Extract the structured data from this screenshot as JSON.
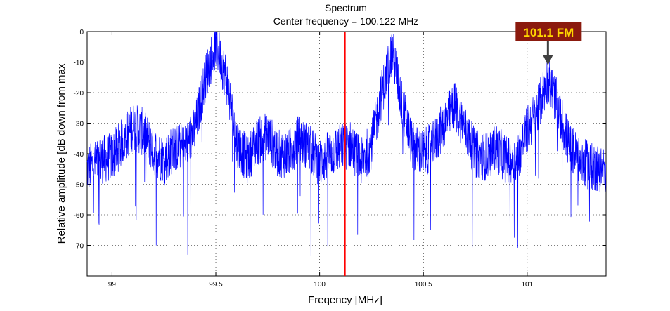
{
  "chart_data": {
    "type": "line",
    "title": "Spectrum",
    "subtitle": "Center frequency = 100.122 MHz",
    "xlabel": "Freqency [MHz]",
    "ylabel": "Relative amplitude [dB down from max",
    "xlim": [
      98.88,
      101.38
    ],
    "ylim": [
      -80,
      0
    ],
    "x_ticks": [
      99,
      99.5,
      100,
      100.5,
      101
    ],
    "x_tick_labels": [
      "99",
      "99.5",
      "100",
      "100.5",
      "101"
    ],
    "y_ticks": [
      0,
      -10,
      -20,
      -30,
      -40,
      -50,
      -60,
      -70
    ],
    "y_tick_labels": [
      "0",
      "-10",
      "-20",
      "-30",
      "-40",
      "-50",
      "-60",
      "-70"
    ],
    "grid": true,
    "grid_style": "dotted",
    "series": [
      {
        "color": "#0000ff",
        "envelope": {
          "x": [
            98.88,
            98.95,
            99.0,
            99.05,
            99.1,
            99.15,
            99.2,
            99.25,
            99.3,
            99.35,
            99.4,
            99.45,
            99.5,
            99.55,
            99.6,
            99.65,
            99.7,
            99.75,
            99.8,
            99.85,
            99.9,
            99.95,
            100.0,
            100.05,
            100.1,
            100.15,
            100.2,
            100.25,
            100.3,
            100.35,
            100.4,
            100.45,
            100.5,
            100.55,
            100.6,
            100.65,
            100.7,
            100.75,
            100.8,
            100.85,
            100.9,
            100.95,
            101.0,
            101.05,
            101.1,
            101.15,
            101.2,
            101.25,
            101.3,
            101.38
          ],
          "y": [
            -45,
            -42,
            -41,
            -36,
            -31,
            -33,
            -39,
            -42,
            -38,
            -38,
            -32,
            -15,
            -4,
            -15,
            -36,
            -42,
            -36,
            -34,
            -40,
            -40,
            -35,
            -38,
            -43,
            -40,
            -38,
            -37,
            -43,
            -37,
            -20,
            -6,
            -25,
            -38,
            -40,
            -37,
            -30,
            -24,
            -32,
            -40,
            -41,
            -38,
            -42,
            -42,
            -32,
            -26,
            -15,
            -25,
            -37,
            -42,
            -44,
            -45
          ]
        },
        "noise_spread_db": 8
      }
    ],
    "reference_line": {
      "x": 100.122,
      "color": "#ff0000"
    },
    "annotation": {
      "text": "101.1 FM",
      "x": 101.1,
      "y": -11,
      "bg_color": "#8b1a0e",
      "text_color": "#ffd700",
      "arrow_color": "#404040"
    }
  }
}
